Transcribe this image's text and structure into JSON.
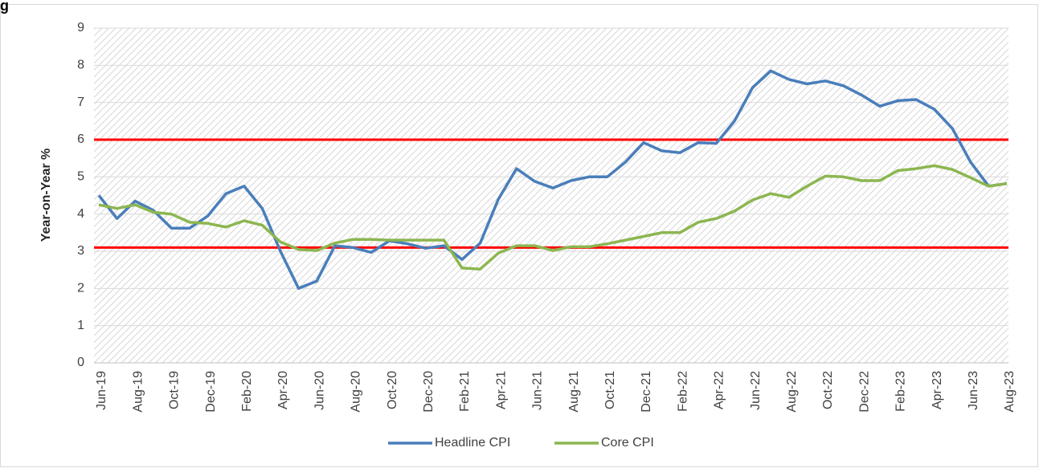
{
  "chart_data": {
    "type": "line",
    "title": "g",
    "y_label": "Year-on-Year %",
    "categories": [
      "Jun-19",
      null,
      "Aug-19",
      null,
      "Oct-19",
      null,
      "Dec-19",
      null,
      "Feb-20",
      null,
      "Apr-20",
      null,
      "Jun-20",
      null,
      "Aug-20",
      null,
      "Oct-20",
      null,
      "Dec-20",
      null,
      "Feb-21",
      null,
      "Apr-21",
      null,
      "Jun-21",
      null,
      "Aug-21",
      null,
      "Oct-21",
      null,
      "Dec-21",
      null,
      "Feb-22",
      null,
      "Apr-22",
      null,
      "Jun-22",
      null,
      "Aug-22",
      null,
      "Oct-22",
      null,
      "Dec-22",
      null,
      "Feb-23",
      null,
      "Apr-23",
      null,
      "Jun-23",
      null,
      "Aug-23"
    ],
    "series": [
      {
        "name": "Headline CPI",
        "color": "#4a7ebb",
        "values": [
          4.5,
          3.88,
          4.35,
          4.1,
          3.62,
          3.62,
          3.95,
          4.55,
          4.75,
          4.15,
          3.0,
          2.0,
          2.2,
          3.15,
          3.1,
          2.97,
          3.28,
          3.2,
          3.08,
          3.15,
          2.78,
          3.22,
          4.4,
          5.22,
          4.88,
          4.7,
          4.9,
          5.0,
          5.0,
          5.4,
          5.92,
          5.7,
          5.65,
          5.92,
          5.9,
          6.5,
          7.4,
          7.85,
          7.62,
          7.5,
          7.58,
          7.45,
          7.2,
          6.9,
          7.05,
          7.08,
          6.82,
          6.3,
          5.4,
          4.75,
          4.82
        ]
      },
      {
        "name": "Core CPI",
        "color": "#8cb650",
        "values": [
          4.25,
          4.15,
          4.25,
          4.05,
          4.0,
          3.78,
          3.75,
          3.65,
          3.82,
          3.7,
          3.25,
          3.05,
          3.02,
          3.22,
          3.32,
          3.32,
          3.3,
          3.3,
          3.3,
          3.3,
          2.55,
          2.52,
          2.95,
          3.15,
          3.15,
          3.02,
          3.12,
          3.12,
          3.2,
          3.3,
          3.4,
          3.5,
          3.5,
          3.78,
          3.88,
          4.08,
          4.38,
          4.55,
          4.45,
          4.75,
          5.02,
          5.0,
          4.9,
          4.9,
          5.17,
          5.22,
          5.3,
          5.2,
          4.98,
          4.75,
          4.82
        ]
      }
    ],
    "reference_lines": [
      {
        "value": 6,
        "color": "#ff0000"
      },
      {
        "value": 3.1,
        "color": "#ff0000"
      }
    ],
    "ylim": [
      0,
      9
    ],
    "yticks": [
      0,
      1,
      2,
      3,
      4,
      5,
      6,
      7,
      8,
      9
    ],
    "grid": true,
    "legend": "bottom"
  }
}
